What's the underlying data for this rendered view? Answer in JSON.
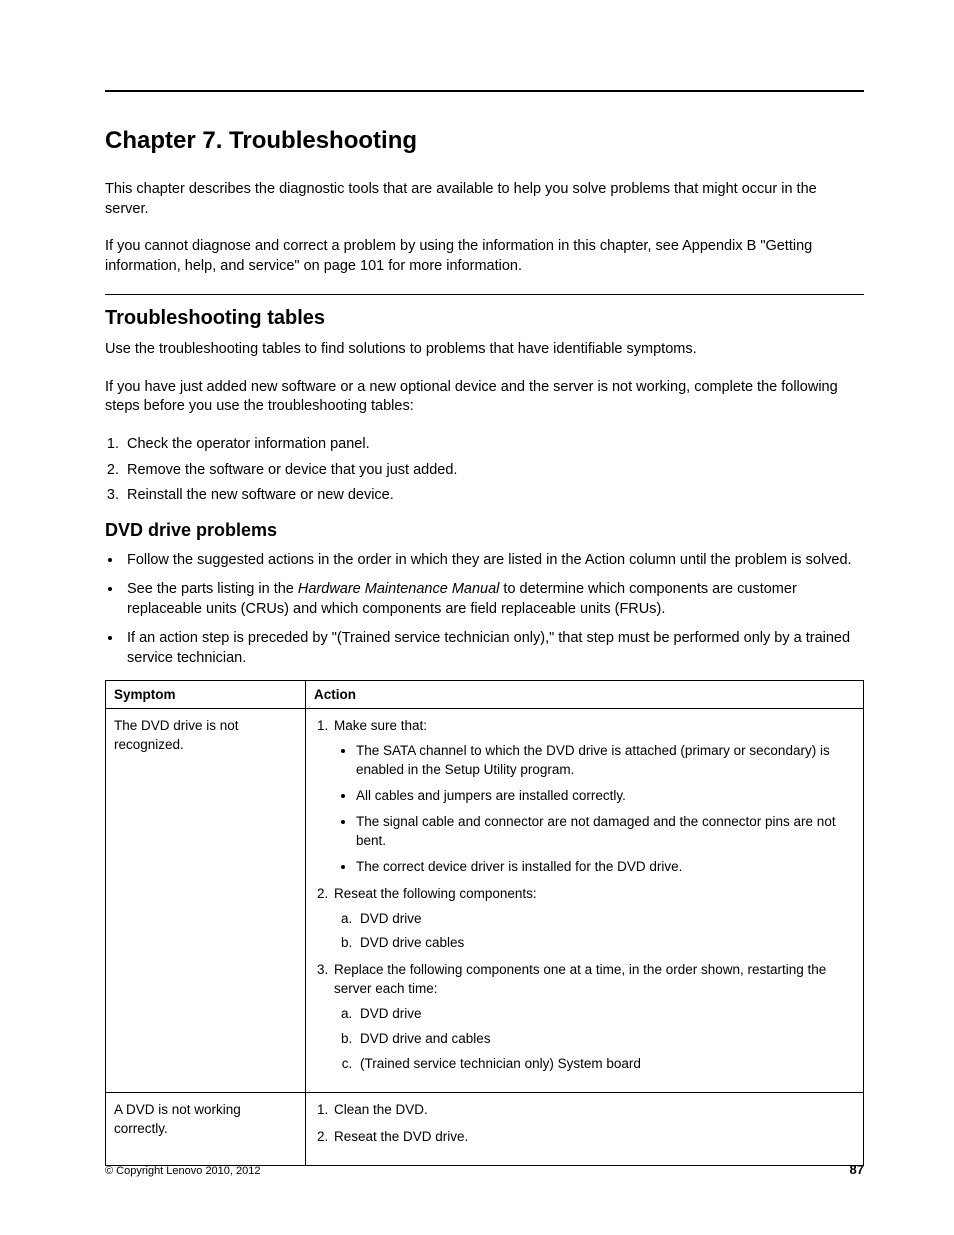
{
  "chapter_title": "Chapter 7.  Troubleshooting",
  "intro_p1": "This chapter describes the diagnostic tools that are available to help you solve problems that might occur in the server.",
  "intro_p2": "If you cannot diagnose and correct a problem by using the information in this chapter, see Appendix B \"Getting information, help, and service\" on page 101 for more information.",
  "section1": {
    "title": "Troubleshooting tables",
    "p1": "Use the troubleshooting tables to find solutions to problems that have identifiable symptoms.",
    "p2": "If you have just added new software or a new optional device and the server is not working, complete the following steps before you use the troubleshooting tables:",
    "steps": [
      "Check the operator information panel.",
      "Remove the software or device that you just added.",
      "Reinstall the new software or new device."
    ]
  },
  "section2": {
    "title": "DVD drive problems",
    "bullets": {
      "b1": "Follow the suggested actions in the order in which they are listed in the Action column until the problem is solved.",
      "b2_pre": "See the parts listing in the ",
      "b2_italic": "Hardware Maintenance Manual",
      "b2_post": " to determine which components are customer replaceable units (CRUs) and which components are field replaceable units (FRUs).",
      "b3": "If an action step is preceded by \"(Trained service technician only),\" that step must be performed only by a trained service technician."
    }
  },
  "table": {
    "headers": {
      "symptom": "Symptom",
      "action": "Action"
    },
    "row1": {
      "symptom": "The DVD drive is not recognized.",
      "a1_lead": "Make sure that:",
      "a1_items": [
        "The SATA channel to which the DVD drive is attached (primary or secondary) is enabled in the Setup Utility program.",
        "All cables and jumpers are installed correctly.",
        "The signal cable and connector are not damaged and the connector pins are not bent.",
        "The correct device driver is installed for the DVD drive."
      ],
      "a2_lead": "Reseat the following components:",
      "a2_items": [
        "DVD drive",
        "DVD drive cables"
      ],
      "a3_lead": "Replace the following components one at a time, in the order shown, restarting the server each time:",
      "a3_items": [
        "DVD drive",
        "DVD drive and cables",
        "(Trained service technician only) System board"
      ]
    },
    "row2": {
      "symptom": "A DVD is not working correctly.",
      "actions": [
        "Clean the DVD.",
        "Reseat the DVD drive."
      ]
    }
  },
  "footer": {
    "copyright": "© Copyright Lenovo 2010, 2012",
    "page": "87"
  }
}
